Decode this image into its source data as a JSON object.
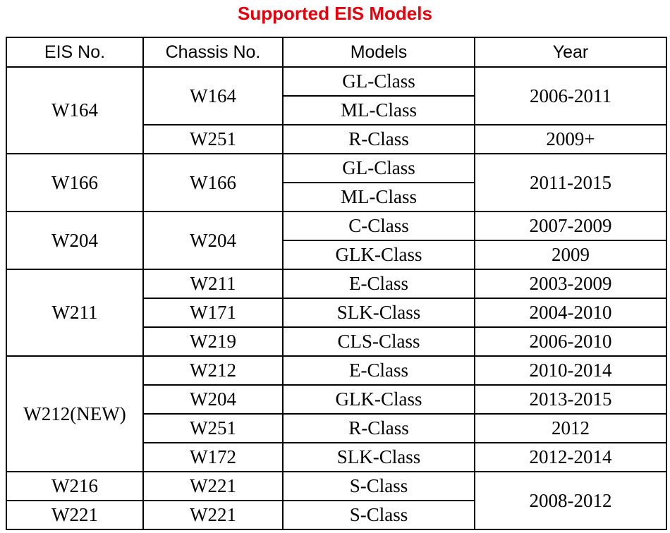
{
  "title": "Supported EIS Models",
  "table": {
    "header": [
      "EIS No.",
      "Chassis No.",
      "Models",
      "Year"
    ],
    "rows": [
      [
        "W164",
        "W164",
        "GL-Class",
        "2006-2011"
      ],
      [
        null,
        null,
        "ML-Class",
        null
      ],
      [
        null,
        "W251",
        "R-Class",
        "2009+"
      ],
      [
        "W166",
        "W166",
        "GL-Class",
        "2011-2015"
      ],
      [
        null,
        null,
        "ML-Class",
        null
      ],
      [
        "W204",
        "W204",
        "C-Class",
        "2007-2009"
      ],
      [
        null,
        null,
        "GLK-Class",
        "2009"
      ],
      [
        "W211",
        "W211",
        "E-Class",
        "2003-2009"
      ],
      [
        null,
        "W171",
        "SLK-Class",
        "2004-2010"
      ],
      [
        null,
        "W219",
        "CLS-Class",
        "2006-2010"
      ],
      [
        "W212(NEW)",
        "W212",
        "E-Class",
        "2010-2014"
      ],
      [
        null,
        "W204",
        "GLK-Class",
        "2013-2015"
      ],
      [
        null,
        "W251",
        "R-Class",
        "2012"
      ],
      [
        null,
        "W172",
        "SLK-Class",
        "2012-2014"
      ],
      [
        "W216",
        "W221",
        "S-Class",
        "2008-2012"
      ],
      [
        "W221",
        "W221",
        "S-Class",
        null
      ]
    ]
  }
}
